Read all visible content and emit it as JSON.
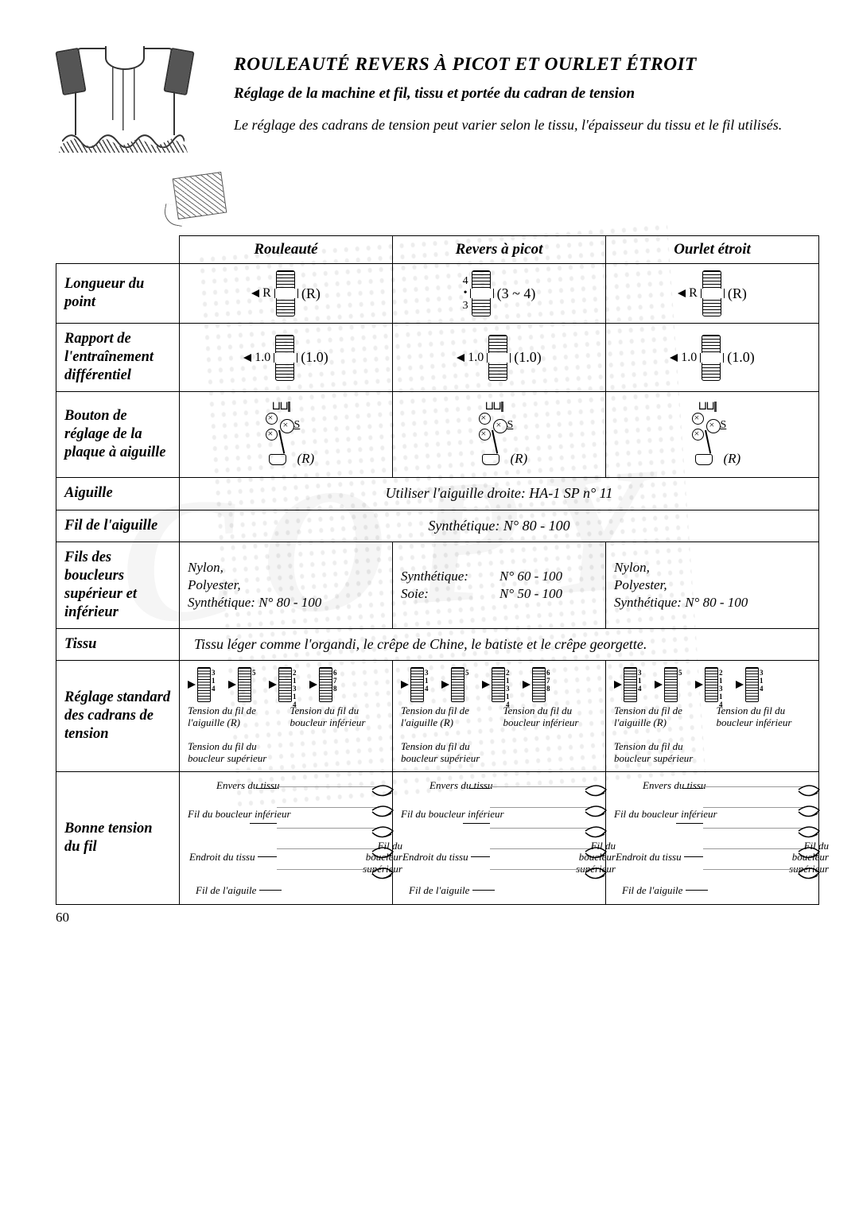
{
  "page_number": "60",
  "title": "ROULEAUTÉ REVERS À PICOT ET OURLET ÉTROIT",
  "subtitle": "Réglage de la machine et fil, tissu et portée du cadran de tension",
  "intro": "Le réglage des cadrans de tension peut varier selon le tissu, l'épaisseur du tissu et le fil utilisés.",
  "colors": {
    "ink": "#000000",
    "bg": "#ffffff",
    "watermark": "rgba(0,0,0,0.05)"
  },
  "columns": {
    "rouleaute": "Rouleauté",
    "revers": "Revers à picot",
    "ourlet": "Ourlet étroit"
  },
  "rows": {
    "longueur": {
      "label": "Longueur du point",
      "rouleaute": {
        "value": "R",
        "annotation": "(R)"
      },
      "revers": {
        "value_top": "4",
        "value_bot": "3",
        "annotation": "(3 ~ 4)"
      },
      "ourlet": {
        "value": "R",
        "annotation": "(R)"
      }
    },
    "rapport": {
      "label": "Rapport de l'entraînement différentiel",
      "rouleaute": {
        "value": "1.0",
        "annotation": "(1.0)"
      },
      "revers": {
        "value": "1.0",
        "annotation": "(1.0)"
      },
      "ourlet": {
        "value": "1.0",
        "annotation": "(1.0)"
      }
    },
    "bouton": {
      "label": "Bouton de réglage de la plaque à aiguille",
      "rouleaute": {
        "sr": "S",
        "annotation": "(R)"
      },
      "revers": {
        "sr": "S",
        "annotation": "(R)"
      },
      "ourlet": {
        "sr": "S",
        "annotation": "(R)"
      }
    },
    "aiguille": {
      "label": "Aiguille",
      "merged_text": "Utiliser l'aiguille droite: HA-1 SP n° 11"
    },
    "fil_aiguille": {
      "label": "Fil de l'aiguille",
      "merged_text": "Synthétique: N° 80 - 100"
    },
    "fils_boucleurs": {
      "label": "Fils des boucleurs supérieur et inférieur",
      "rouleaute": "Nylon,\nPolyester,\nSynthétique: N° 80 - 100",
      "revers_lines": [
        {
          "k": "Synthétique:",
          "v": "N° 60 - 100"
        },
        {
          "k": "Soie:",
          "v": "N° 50 - 100"
        }
      ],
      "ourlet": "Nylon,\nPolyester,\nSynthétique: N° 80 - 100"
    },
    "tissu": {
      "label": "Tissu",
      "merged_text": "Tissu léger comme l'organdi, le crêpe de Chine, le batiste et le crêpe georgette."
    },
    "reglage": {
      "label": "Réglage standard des cadrans de tension",
      "dial_groups": {
        "rouleaute": [
          [
            "3",
            "1",
            "4"
          ],
          [
            "5"
          ],
          [
            "2",
            "1",
            "3",
            "1",
            "4"
          ],
          [
            "6",
            "7",
            "8"
          ]
        ],
        "revers": [
          [
            "3",
            "1",
            "4"
          ],
          [
            "5"
          ],
          [
            "2",
            "1",
            "3",
            "1",
            "4"
          ],
          [
            "6",
            "7",
            "8"
          ]
        ],
        "ourlet": [
          [
            "3",
            "1",
            "4"
          ],
          [
            "5"
          ],
          [
            "2",
            "1",
            "3",
            "1",
            "4"
          ],
          [
            "3",
            "1",
            "4"
          ]
        ]
      },
      "tension_labels": {
        "a": "Tension du fil de l'aiguille (R)",
        "b": "Tension du fil du boucleur inférieur",
        "c": "Tension du fil du boucleur supérieur"
      }
    },
    "bonne": {
      "label": "Bonne tension du fil",
      "labels": {
        "envers": "Envers du tissu",
        "fil_inf": "Fil du boucleur inférieur",
        "endroit": "Endroit du tissu",
        "fil_sup": "Fil du boucleur supérieur",
        "fil_aig": "Fil de l'aiguile"
      }
    }
  }
}
